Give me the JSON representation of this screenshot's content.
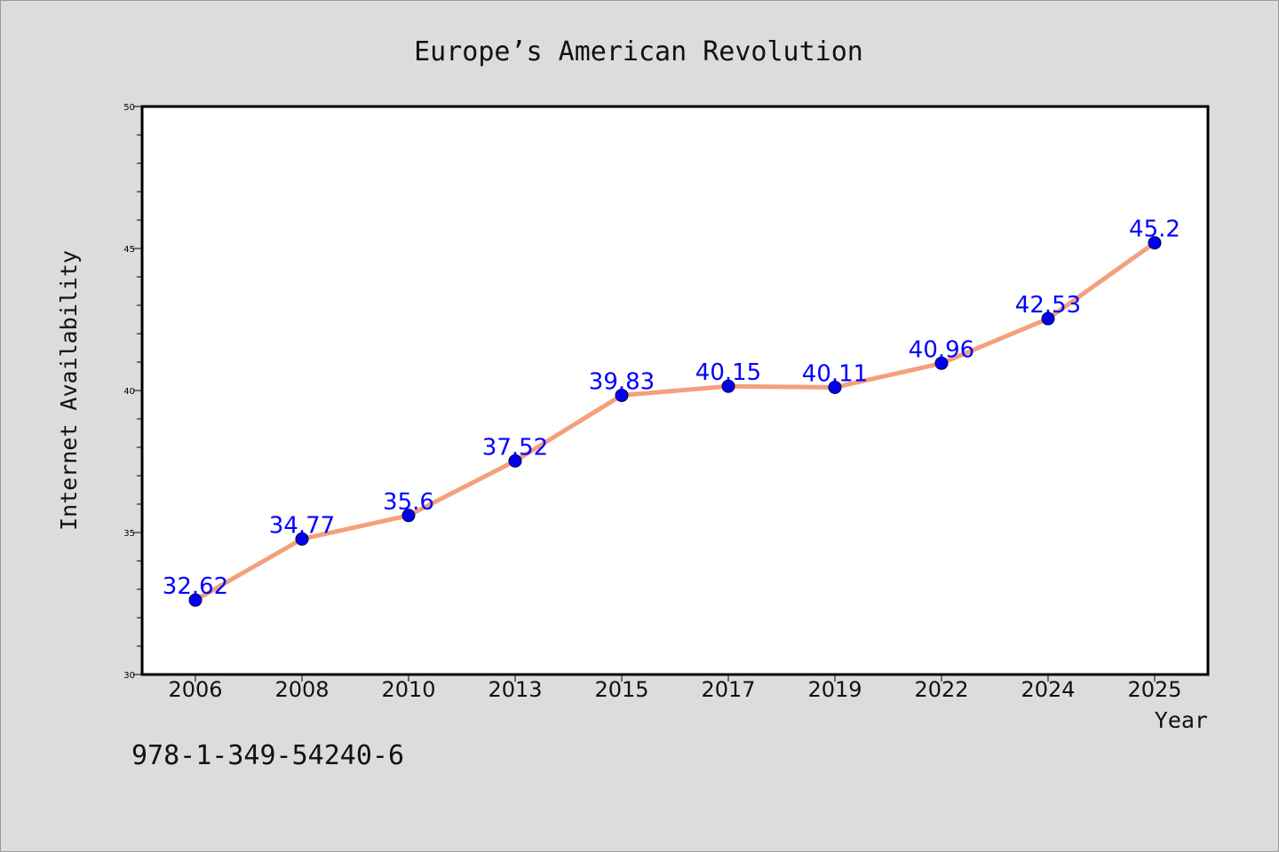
{
  "page": {
    "background": "#dcdcdc",
    "footer_code": "978-1-349-54240-6"
  },
  "chart_data": {
    "type": "line",
    "title": "Europe’s American Revolution",
    "xlabel": "Year",
    "ylabel": "Internet Availability",
    "categories": [
      "2006",
      "2008",
      "2010",
      "2013",
      "2015",
      "2017",
      "2019",
      "2022",
      "2024",
      "2025"
    ],
    "series": [
      {
        "values": [
          32.62,
          34.77,
          35.6,
          37.52,
          39.83,
          40.15,
          40.11,
          40.96,
          42.53,
          45.2
        ],
        "labels": [
          "32.62",
          "34.77",
          "35.6",
          "37.52",
          "39.83",
          "40.15",
          "40.11",
          "40.96",
          "42.53",
          "45.2"
        ],
        "line_color": "#f4a07c",
        "marker_color": "#0000ee",
        "label_color": "#0000ff"
      }
    ],
    "ylim": [
      30,
      50
    ],
    "yticks_major": [
      30,
      35,
      40,
      45,
      50
    ],
    "ytick_labels": [
      "30",
      "35",
      "40",
      "45",
      "50"
    ],
    "grid": false,
    "plot_background": "#ffffff"
  }
}
